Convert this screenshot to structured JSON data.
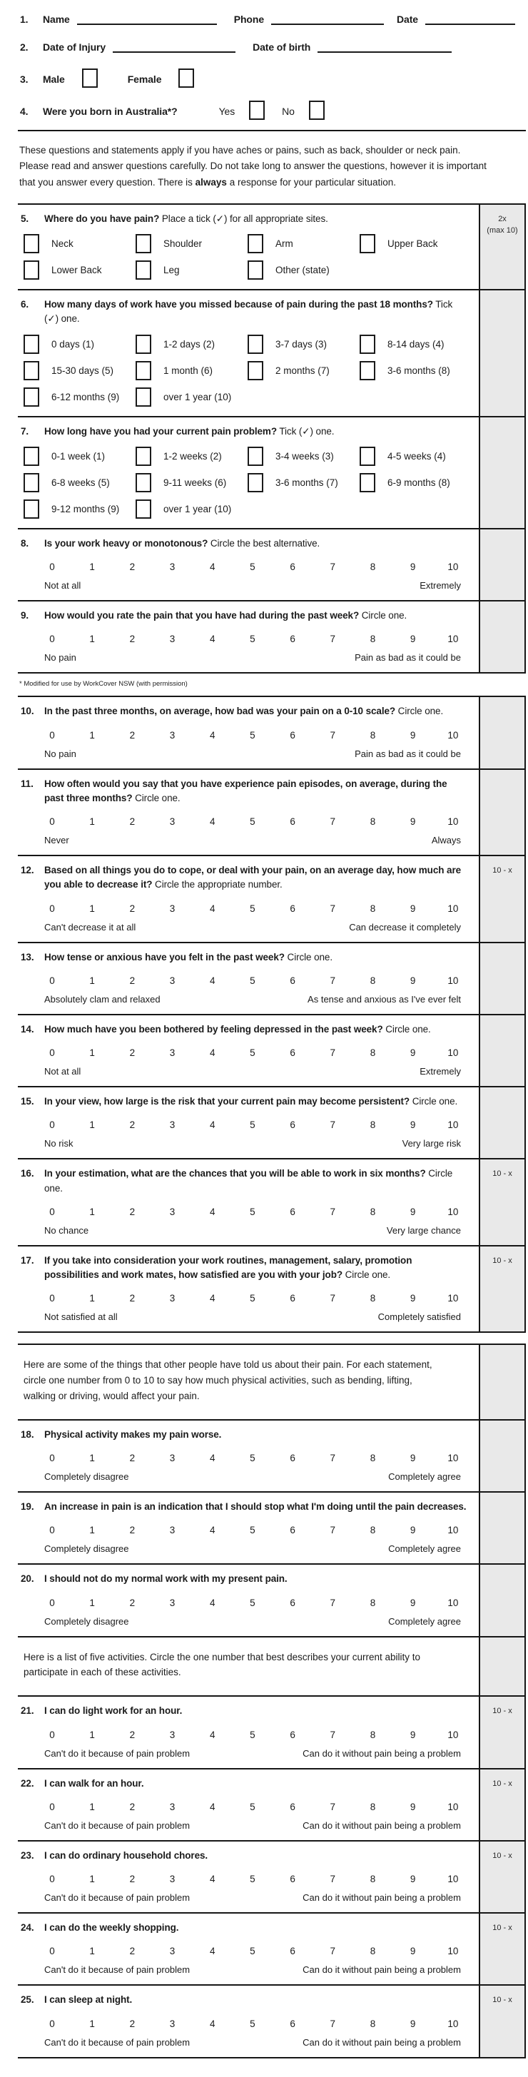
{
  "header": {
    "q1": {
      "num": "1.",
      "name_label": "Name",
      "phone_label": "Phone",
      "date_label": "Date"
    },
    "q2": {
      "num": "2.",
      "injury_label": "Date of Injury",
      "birth_label": "Date of birth"
    },
    "q3": {
      "num": "3.",
      "male_label": "Male",
      "female_label": "Female"
    },
    "q4": {
      "num": "4.",
      "question": "Were you born in Australia*?",
      "yes_label": "Yes",
      "no_label": "No"
    }
  },
  "intro": {
    "p1": "These questions and statements apply if you have aches or pains, such as back, shoulder or neck pain. Please read and answer questions carefully. Do not take long to answer the questions, however it is important that you answer every question. There is ",
    "bold": "always",
    "p2": " a response for your particular situation."
  },
  "footnote": "* Modified for use by WorkCover NSW (with permission)",
  "scale_numbers": [
    "0",
    "1",
    "2",
    "3",
    "4",
    "5",
    "6",
    "7",
    "8",
    "9",
    "10"
  ],
  "colors": {
    "score_column_bg": "#e9e9e9",
    "border": "#161616"
  },
  "sections": [
    {
      "rows": [
        {
          "type": "check",
          "num": "5.",
          "bold": "Where do you have pain?",
          "normal": " Place a tick (✓) for all appropriate sites.",
          "score": [
            "2x",
            "(max 10)"
          ],
          "options": [
            "Neck",
            "Shoulder",
            "Arm",
            "Upper Back",
            "Lower Back",
            "Leg",
            "Other (state)"
          ]
        },
        {
          "type": "check",
          "num": "6.",
          "bold": "How many days of work have you missed because of pain during the past 18 months?",
          "normal": " Tick (✓) one.",
          "score": [],
          "options": [
            "0 days (1)",
            "1-2 days (2)",
            "3-7 days (3)",
            "8-14 days (4)",
            "15-30 days (5)",
            "1 month (6)",
            "2 months (7)",
            "3-6 months (8)",
            "6-12 months (9)",
            "over 1 year (10)"
          ]
        },
        {
          "type": "check",
          "num": "7.",
          "bold": "How long have you had your current pain problem?",
          "normal": " Tick (✓) one.",
          "score": [],
          "options": [
            "0-1 week (1)",
            "1-2 weeks (2)",
            "3-4 weeks (3)",
            "4-5 weeks (4)",
            "6-8 weeks (5)",
            "9-11 weeks (6)",
            "3-6 months (7)",
            "6-9 months (8)",
            "9-12 months (9)",
            "over 1 year (10)"
          ]
        },
        {
          "type": "scale",
          "num": "8.",
          "bold": "Is your work heavy or monotonous?",
          "normal": " Circle the best alternative.",
          "score": [],
          "left": "Not at all",
          "right": "Extremely"
        },
        {
          "type": "scale",
          "num": "9.",
          "bold": "How would you rate the pain that you have had during the past week?",
          "normal": " Circle one.",
          "score": [],
          "left": "No pain",
          "right": "Pain as bad as it could be"
        }
      ]
    },
    {
      "rows": [
        {
          "type": "scale",
          "num": "10.",
          "bold": "In the past three months, on average, how bad was your pain on a 0-10 scale?",
          "normal": " Circle one.",
          "score": [],
          "left": "No pain",
          "right": "Pain as bad as it could be"
        },
        {
          "type": "scale",
          "num": "11.",
          "bold": "How often would you say that you have experience pain episodes, on average, during the past three months?",
          "normal": " Circle one.",
          "score": [],
          "left": "Never",
          "right": "Always"
        },
        {
          "type": "scale",
          "num": "12.",
          "bold": "Based on all things you do to cope, or deal with your pain, on an average day, how much are you able to decrease it?",
          "normal": " Circle the appropriate number.",
          "score": [
            "10 - x"
          ],
          "left": "Can't decrease it at all",
          "right": "Can decrease it completely"
        },
        {
          "type": "scale",
          "num": "13.",
          "bold": "How tense or anxious have you felt in the past week?",
          "normal": " Circle one.",
          "score": [],
          "left": "Absolutely clam and relaxed",
          "right": "As tense and anxious as I've ever felt"
        },
        {
          "type": "scale",
          "num": "14.",
          "bold": "How much have you been bothered by feeling depressed in the past week?",
          "normal": " Circle one.",
          "score": [],
          "left": "Not at all",
          "right": "Extremely"
        },
        {
          "type": "scale",
          "num": "15.",
          "bold": "In your view, how large is the risk that your current pain may become persistent?",
          "normal": " Circle one.",
          "score": [],
          "left": "No risk",
          "right": "Very large risk"
        },
        {
          "type": "scale",
          "num": "16.",
          "bold": "In your estimation, what are the chances that you will be able to work in six months?",
          "normal": " Circle one.",
          "score": [
            "10 - x"
          ],
          "left": "No chance",
          "right": "Very large chance"
        },
        {
          "type": "scale",
          "num": "17.",
          "bold": "If you take into consideration your work routines, management, salary, promotion possibilities and work mates, how satisfied are you with your job?",
          "normal": " Circle one.",
          "score": [
            "10 - x"
          ],
          "left": "Not satisfied at all",
          "right": "Completely satisfied"
        }
      ]
    },
    {
      "rows": [
        {
          "type": "para",
          "text": "Here are some of the things that other people have told us about their pain. For each statement, circle one number from 0 to 10 to say how much physical activities, such as bending, lifting, walking or driving, would affect your pain.",
          "score": []
        },
        {
          "type": "scale",
          "num": "18.",
          "bold": "Physical activity makes my pain worse.",
          "normal": "",
          "score": [],
          "left": "Completely disagree",
          "right": "Completely agree"
        },
        {
          "type": "scale",
          "num": "19.",
          "bold": "An increase in pain is an indication that I should stop what I'm doing until the pain decreases.",
          "normal": "",
          "score": [],
          "left": "Completely disagree",
          "right": "Completely agree"
        },
        {
          "type": "scale",
          "num": "20.",
          "bold": "I should not do my normal work with my present pain.",
          "normal": "",
          "score": [],
          "left": "Completely disagree",
          "right": "Completely agree"
        },
        {
          "type": "para",
          "text": "Here is a list of five activities. Circle the one number that best describes your current ability to participate in each of these activities.",
          "score": []
        },
        {
          "type": "scale",
          "num": "21.",
          "bold": "I can do light work for an hour.",
          "normal": "",
          "score": [
            "10 - x"
          ],
          "left": "Can't do it because of pain problem",
          "right": "Can do it without pain being a problem"
        },
        {
          "type": "scale",
          "num": "22.",
          "bold": "I can walk for an hour.",
          "normal": "",
          "score": [
            "10 - x"
          ],
          "left": "Can't do it because of pain problem",
          "right": "Can do it without pain being a problem"
        },
        {
          "type": "scale",
          "num": "23.",
          "bold": "I can do ordinary household chores.",
          "normal": "",
          "score": [
            "10 - x"
          ],
          "left": "Can't do it because of pain problem",
          "right": "Can do it without pain being a problem"
        },
        {
          "type": "scale",
          "num": "24.",
          "bold": "I can do the weekly shopping.",
          "normal": "",
          "score": [
            "10 - x"
          ],
          "left": "Can't do it because of pain problem",
          "right": "Can do it without pain being a problem"
        },
        {
          "type": "scale",
          "num": "25.",
          "bold": "I can sleep at night.",
          "normal": "",
          "score": [
            "10 - x"
          ],
          "left": "Can't do it because of pain problem",
          "right": "Can do it without pain being a problem"
        }
      ]
    }
  ]
}
